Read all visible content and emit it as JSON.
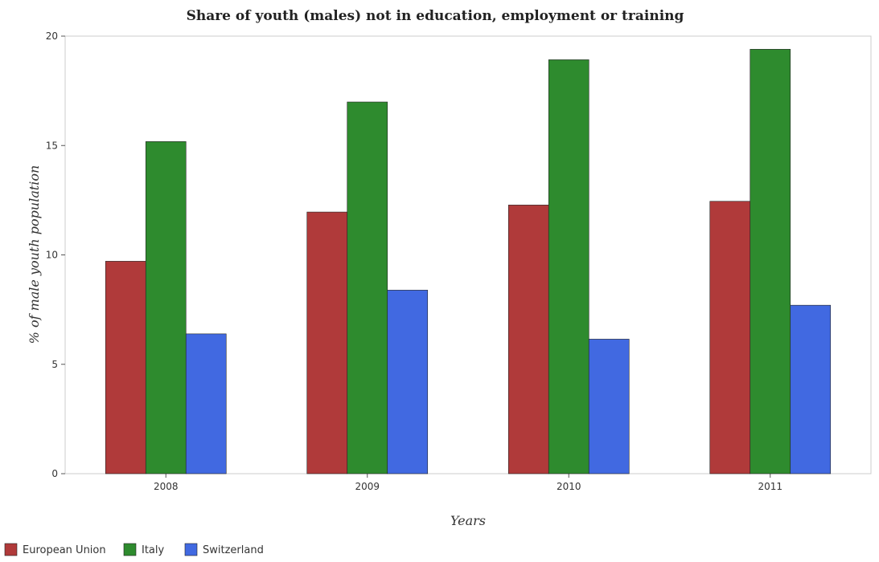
{
  "chart_data": {
    "type": "bar",
    "title": "Share of youth (males) not in education, employment or training",
    "xlabel": "Years",
    "ylabel": "% of male youth population",
    "categories": [
      "2008",
      "2009",
      "2010",
      "2011"
    ],
    "ylim": [
      0,
      20
    ],
    "yticks": [
      0,
      5,
      10,
      15,
      20
    ],
    "grid": false,
    "legend_position": "bottom-left",
    "series": [
      {
        "name": "European Union",
        "color": "#b03a3a",
        "values": [
          9.71,
          11.96,
          12.28,
          12.45
        ]
      },
      {
        "name": "Italy",
        "color": "#2e8b2e",
        "values": [
          15.18,
          16.99,
          18.92,
          19.4
        ]
      },
      {
        "name": "Switzerland",
        "color": "#4169e1",
        "values": [
          6.39,
          8.39,
          6.15,
          7.7
        ]
      }
    ]
  }
}
